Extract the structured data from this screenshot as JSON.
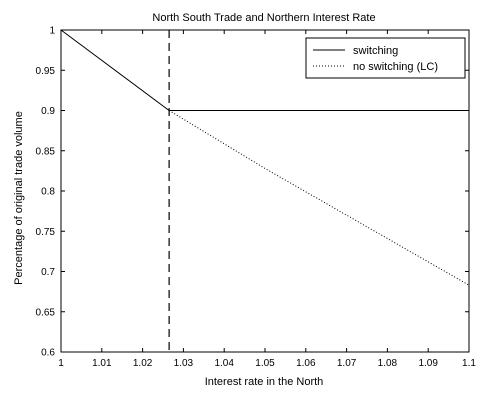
{
  "chart_data": {
    "type": "line",
    "title": "North South Trade and Northern Interest Rate",
    "xlabel": "Interest rate in the North",
    "ylabel": "Percentage of original trade volume",
    "xlim": [
      1,
      1.1
    ],
    "ylim": [
      0.6,
      1
    ],
    "x_ticks": [
      1,
      1.01,
      1.02,
      1.03,
      1.04,
      1.05,
      1.06,
      1.07,
      1.08,
      1.09,
      1.1
    ],
    "x_tick_labels": [
      "1",
      "1.01",
      "1.02",
      "1.03",
      "1.04",
      "1.05",
      "1.06",
      "1.07",
      "1.08",
      "1.09",
      "1.1"
    ],
    "y_ticks": [
      0.6,
      0.65,
      0.7,
      0.75,
      0.8,
      0.85,
      0.9,
      0.95,
      1
    ],
    "y_tick_labels": [
      "0.6",
      "0.65",
      "0.7",
      "0.75",
      "0.8",
      "0.85",
      "0.9",
      "0.95",
      "1"
    ],
    "grid": false,
    "legend_position": "top-right",
    "series": [
      {
        "name": "switching",
        "style": "solid",
        "color": "#000000",
        "x": [
          1,
          1.0265,
          1.1
        ],
        "y": [
          1,
          0.9,
          0.9
        ]
      },
      {
        "name": "no switching (LC)",
        "style": "dotted",
        "color": "#000000",
        "x": [
          1.0265,
          1.05,
          1.07,
          1.09,
          1.1
        ],
        "y": [
          0.9,
          0.828,
          0.77,
          0.712,
          0.683
        ]
      }
    ],
    "vertical_lines": [
      {
        "x": 1.0265,
        "style": "dashed",
        "color": "#000000"
      }
    ]
  }
}
